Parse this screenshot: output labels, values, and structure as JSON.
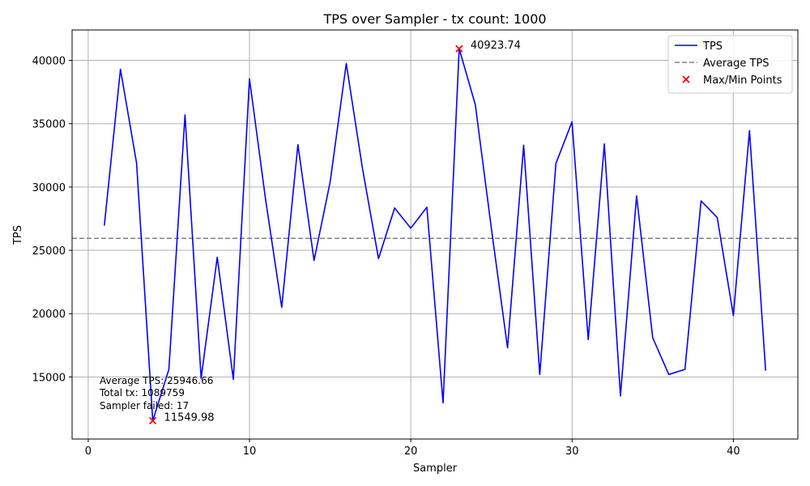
{
  "chart_data": {
    "type": "line",
    "title": "TPS over Sampler - tx count: 1000",
    "xlabel": "Sampler",
    "ylabel": "TPS",
    "xlim": [
      -1,
      44
    ],
    "ylim": [
      10100,
      42400
    ],
    "xticks": [
      0,
      10,
      20,
      30,
      40
    ],
    "yticks": [
      15000,
      20000,
      25000,
      30000,
      35000,
      40000
    ],
    "grid": true,
    "legend_position": "top-right",
    "series": [
      {
        "name": "TPS",
        "color": "#0000ff",
        "x": [
          1,
          2,
          3,
          4,
          5,
          6,
          7,
          8,
          9,
          10,
          11,
          12,
          13,
          14,
          15,
          16,
          17,
          18,
          19,
          20,
          21,
          22,
          23,
          24,
          25,
          26,
          27,
          28,
          29,
          30,
          31,
          32,
          33,
          34,
          35,
          36,
          37,
          38,
          39,
          40,
          41,
          42
        ],
        "y": [
          26950,
          39300,
          31900,
          11550,
          15600,
          35700,
          14900,
          24450,
          14800,
          38550,
          29000,
          20500,
          33350,
          24200,
          30400,
          39750,
          31500,
          24350,
          28350,
          26750,
          28400,
          12950,
          40923.74,
          36500,
          26700,
          17300,
          33300,
          15200,
          31850,
          35150,
          17950,
          33400,
          13500,
          29300,
          18100,
          15200,
          15600,
          28900,
          27600,
          19850,
          34450,
          15500
        ]
      }
    ],
    "average": {
      "name": "Average TPS",
      "value": 25946.66,
      "color": "#808080"
    },
    "extremes": {
      "name": "Max/Min Points",
      "color": "#ff0000",
      "points": [
        {
          "x": 23,
          "y": 40923.74,
          "label": "40923.74"
        },
        {
          "x": 4,
          "y": 11549.98,
          "label": "11549.98"
        }
      ]
    },
    "annotations": [
      "Average TPS: 25946.66",
      "Total tx: 1089759",
      "Sampler failed: 17"
    ]
  }
}
